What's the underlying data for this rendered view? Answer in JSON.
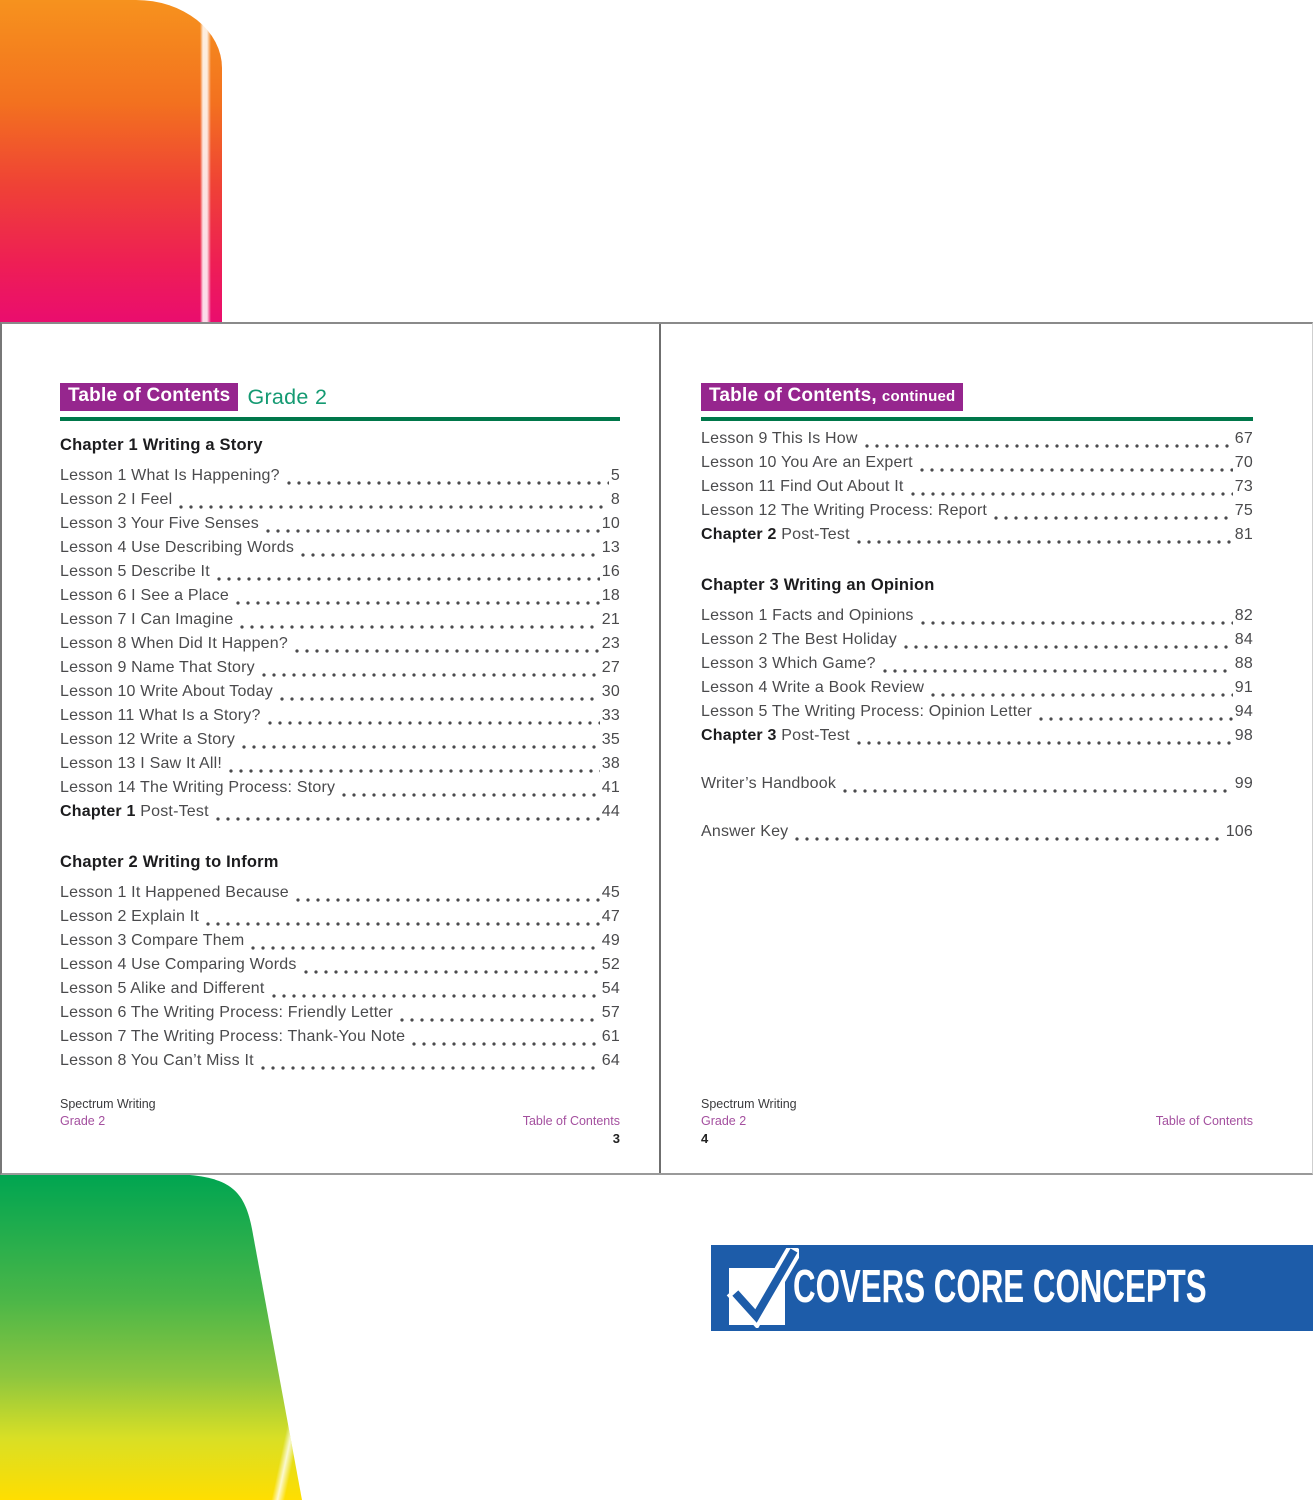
{
  "colors": {
    "banner_purple": "#96268E",
    "grade_teal": "#149A72",
    "rule_green": "#00774A",
    "heading": "#1C1C1E",
    "body": "#4A4A4C",
    "dots": "#4A4A4C",
    "footer_magenta": "#A4509F",
    "footer_dark": "#3A3A3C",
    "blue_banner": "#1D5CA9",
    "grad_orange": "#F6921E",
    "grad_red": "#EF4136",
    "grad_pink": "#EA0D6E",
    "grad_green": "#00A551",
    "grad_yellowgreen": "#8DC63F",
    "grad_yellow": "#FFDE00"
  },
  "left_page": {
    "banner_label": "Table of Contents",
    "banner_suffix": "Grade 2",
    "sections": [
      {
        "heading": {
          "bold": "Chapter 1",
          "rest": "Writing a Story"
        },
        "entries": [
          {
            "label": "Lesson 1 What Is Happening?",
            "page": "5"
          },
          {
            "label": "Lesson 2 I Feel",
            "page": "8"
          },
          {
            "label": "Lesson 3 Your Five Senses",
            "page": "10"
          },
          {
            "label": "Lesson 4 Use Describing Words",
            "page": "13"
          },
          {
            "label": "Lesson 5 Describe It",
            "page": "16"
          },
          {
            "label": "Lesson 6 I See a Place",
            "page": "18"
          },
          {
            "label": "Lesson 7 I Can Imagine",
            "page": "21"
          },
          {
            "label": "Lesson 8 When Did It Happen?",
            "page": "23"
          },
          {
            "label": "Lesson 9 Name That Story",
            "page": "27"
          },
          {
            "label": "Lesson 10 Write About Today",
            "page": "30"
          },
          {
            "label": "Lesson 11 What Is a Story?",
            "page": "33"
          },
          {
            "label": "Lesson 12 Write a Story",
            "page": "35"
          },
          {
            "label": "Lesson 13 I Saw It All!",
            "page": "38"
          },
          {
            "label": "Lesson 14 The Writing Process: Story",
            "page": "41"
          },
          {
            "bold": "Chapter 1",
            "label": "Post-Test",
            "page": "44"
          }
        ]
      },
      {
        "heading": {
          "bold": "Chapter 2",
          "rest": "Writing to Inform"
        },
        "entries": [
          {
            "label": "Lesson 1 It Happened Because",
            "page": "45"
          },
          {
            "label": "Lesson 2 Explain It",
            "page": "47"
          },
          {
            "label": "Lesson 3 Compare Them",
            "page": "49"
          },
          {
            "label": "Lesson 4 Use Comparing Words",
            "page": "52"
          },
          {
            "label": "Lesson 5 Alike and Different",
            "page": "54"
          },
          {
            "label": "Lesson 6 The Writing Process: Friendly Letter",
            "page": "57"
          },
          {
            "label": "Lesson 7 The Writing Process: Thank-You Note",
            "page": "61"
          },
          {
            "label": "Lesson 8 You Can’t Miss It",
            "page": "64"
          }
        ]
      }
    ],
    "footer": {
      "series": "Spectrum Writing",
      "grade": "Grade 2",
      "section": "Table of Contents",
      "page_number": "3"
    }
  },
  "right_page": {
    "banner_label": "Table of Contents,",
    "banner_suffix": "continued",
    "sections": [
      {
        "heading": null,
        "entries": [
          {
            "label": "Lesson 9 This Is How",
            "page": "67"
          },
          {
            "label": "Lesson 10 You Are an Expert",
            "page": "70"
          },
          {
            "label": "Lesson 11 Find Out About It",
            "page": "73"
          },
          {
            "label": "Lesson 12 The Writing Process: Report",
            "page": "75"
          },
          {
            "bold": "Chapter 2",
            "label": "Post-Test",
            "page": "81"
          }
        ]
      },
      {
        "heading": {
          "bold": "Chapter 3",
          "rest": "Writing an Opinion"
        },
        "entries": [
          {
            "label": "Lesson 1 Facts and Opinions",
            "page": "82"
          },
          {
            "label": "Lesson 2 The Best Holiday",
            "page": "84"
          },
          {
            "label": "Lesson 3 Which Game?",
            "page": "88"
          },
          {
            "label": "Lesson 4 Write a Book Review",
            "page": "91"
          },
          {
            "label": "Lesson 5 The Writing Process: Opinion Letter",
            "page": "94"
          },
          {
            "bold": "Chapter 3",
            "label": "Post-Test",
            "page": "98"
          }
        ]
      },
      {
        "heading": null,
        "spaced": true,
        "entries": [
          {
            "label": "Writer’s Handbook",
            "page": "99"
          }
        ]
      },
      {
        "heading": null,
        "spaced": true,
        "entries": [
          {
            "label": "Answer Key",
            "page": "106"
          }
        ]
      }
    ],
    "footer": {
      "series": "Spectrum Writing",
      "grade": "Grade 2",
      "section": "Table of Contents",
      "page_number": "4"
    }
  },
  "bottom_banner": {
    "text": "COVERS CORE CONCEPTS",
    "icon": "checkbox-check-icon"
  }
}
